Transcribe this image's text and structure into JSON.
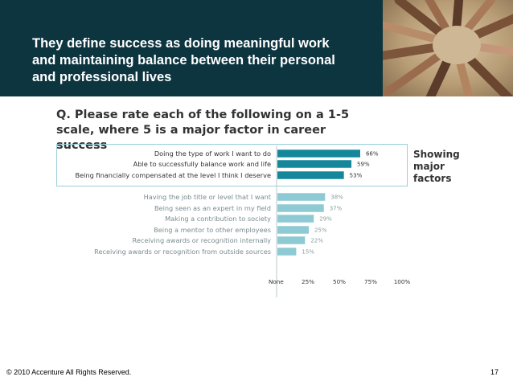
{
  "slide": {
    "title": "They define success as doing meaningful work and maintaining balance between their personal and professional lives",
    "question": "Q. Please rate each of the following on a 1-5 scale, where 5 is a major factor in career success",
    "major_factors_label": "Showing major factors",
    "footer_left": "© 2010 Accenture  All Rights Reserved.",
    "page_number": "17"
  },
  "colors": {
    "header_bg": "#0d3540",
    "major_bar": "#14879a",
    "minor_bar": "#8ecad4",
    "highlight_border": "#9bd0da"
  },
  "chart_data": {
    "type": "bar",
    "orientation": "horizontal",
    "categories": [
      "Doing the type of work I want to do",
      "Able to successfully balance work and life",
      "Being financially compensated at the level I think I deserve",
      "Having the job title or level that I want",
      "Being seen as an expert in my field",
      "Making a contribution to society",
      "Being a mentor to other employees",
      "Receiving awards or recognition internally",
      "Receiving awards or recognition from outside sources"
    ],
    "values": [
      66,
      59,
      53,
      38,
      37,
      29,
      25,
      22,
      15
    ],
    "value_labels": [
      "66%",
      "59%",
      "53%",
      "38%",
      "37%",
      "29%",
      "25%",
      "22%",
      "15%"
    ],
    "major_count": 3,
    "xlim": [
      0,
      100
    ],
    "x_ticks": [
      0,
      25,
      50,
      75,
      100
    ],
    "x_tick_labels": [
      "None",
      "25%",
      "50%",
      "75%",
      "100%"
    ],
    "grid": false,
    "legend": "none"
  }
}
